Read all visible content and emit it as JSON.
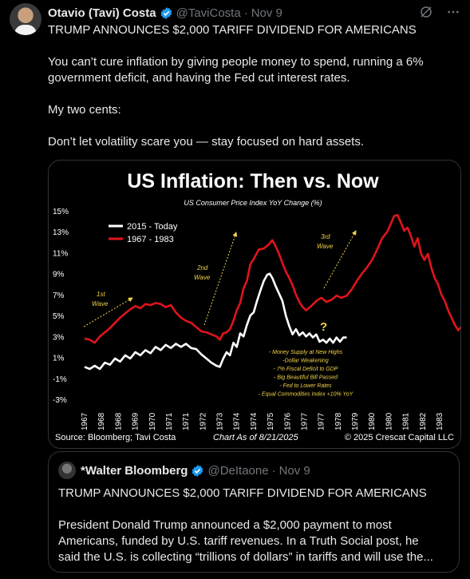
{
  "post": {
    "author_name": "Otavio (Tavi) Costa",
    "handle": "@TaviCosta",
    "separator": "·",
    "date": "Nov 9",
    "text": [
      "TRUMP ANNOUNCES $2,000 TARIFF DIVIDEND FOR AMERICANS",
      "You can’t cure inflation by giving people money to spend, running a 6% government deficit, and having the Fed cut interest rates.",
      "My two cents:",
      "Don’t let volatility scare you — stay focused on hard assets."
    ]
  },
  "icons": {
    "avatar": "avatar-photo",
    "verified": "verified-badge-icon",
    "grok": "grok-icon",
    "more": "more-options-icon"
  },
  "colors": {
    "accent": "#1d9bf0",
    "red": "#e0141b",
    "white": "#ffffff",
    "annotation": "#f1d34a"
  },
  "chart_data": {
    "type": "line",
    "title": "US Inflation: Then vs. Now",
    "subtitle": "US Consumer Price Index YoY Change (%)",
    "y_ticks": [
      "15%",
      "13%",
      "11%",
      "9%",
      "7%",
      "5%",
      "3%",
      "1%",
      "-1%",
      "-3%"
    ],
    "ylim": [
      -3,
      15
    ],
    "x_ticks": [
      "1967",
      "1968",
      "1968",
      "1969",
      "1970",
      "1971",
      "1971",
      "1972",
      "1973",
      "1974",
      "1974",
      "1975",
      "1976",
      "1977",
      "1977",
      "1978",
      "1979",
      "1980",
      "1980",
      "1981",
      "1982",
      "1983"
    ],
    "series": [
      {
        "name": "2015 - Today",
        "color": "#ffffff",
        "points": [
          [
            0,
            0.1
          ],
          [
            0.3,
            -0.1
          ],
          [
            0.6,
            0.2
          ],
          [
            0.9,
            -0.1
          ],
          [
            1.2,
            0.5
          ],
          [
            1.5,
            0.3
          ],
          [
            1.8,
            0.9
          ],
          [
            2.1,
            0.6
          ],
          [
            2.4,
            1.2
          ],
          [
            2.7,
            0.9
          ],
          [
            3.0,
            1.5
          ],
          [
            3.3,
            1.2
          ],
          [
            3.6,
            1.7
          ],
          [
            3.9,
            1.4
          ],
          [
            4.2,
            2.0
          ],
          [
            4.5,
            1.7
          ],
          [
            4.8,
            2.2
          ],
          [
            5.1,
            1.9
          ],
          [
            5.4,
            2.3
          ],
          [
            5.7,
            2.0
          ],
          [
            6.0,
            2.3
          ],
          [
            6.3,
            1.9
          ],
          [
            6.6,
            1.8
          ],
          [
            6.9,
            1.3
          ],
          [
            7.2,
            0.9
          ],
          [
            7.5,
            0.5
          ],
          [
            7.8,
            0.2
          ],
          [
            8.0,
            0.1
          ],
          [
            8.2,
            0.9
          ],
          [
            8.4,
            1.5
          ],
          [
            8.6,
            1.2
          ],
          [
            8.8,
            2.4
          ],
          [
            9.0,
            2.0
          ],
          [
            9.2,
            3.3
          ],
          [
            9.4,
            3.0
          ],
          [
            9.6,
            4.1
          ],
          [
            9.8,
            5.0
          ],
          [
            10.0,
            5.3
          ],
          [
            10.2,
            6.4
          ],
          [
            10.4,
            7.4
          ],
          [
            10.6,
            8.3
          ],
          [
            10.8,
            8.9
          ],
          [
            10.95,
            9.0
          ],
          [
            11.1,
            8.6
          ],
          [
            11.3,
            7.8
          ],
          [
            11.5,
            7.1
          ],
          [
            11.7,
            6.4
          ],
          [
            11.9,
            5.0
          ],
          [
            12.1,
            4.0
          ],
          [
            12.3,
            3.2
          ],
          [
            12.5,
            3.7
          ],
          [
            12.7,
            3.1
          ],
          [
            12.9,
            3.4
          ],
          [
            13.1,
            3.0
          ],
          [
            13.3,
            3.3
          ],
          [
            13.5,
            2.9
          ],
          [
            13.7,
            3.2
          ],
          [
            13.9,
            2.5
          ],
          [
            14.1,
            2.7
          ],
          [
            14.3,
            2.4
          ],
          [
            14.5,
            2.8
          ],
          [
            14.7,
            2.4
          ],
          [
            14.9,
            2.9
          ],
          [
            15.1,
            2.5
          ],
          [
            15.3,
            2.9
          ],
          [
            15.5,
            2.9
          ]
        ]
      },
      {
        "name": "1967 - 1983",
        "color": "#e0141b",
        "points": [
          [
            0,
            2.8
          ],
          [
            0.3,
            2.7
          ],
          [
            0.6,
            2.4
          ],
          [
            0.9,
            3.0
          ],
          [
            1.2,
            3.4
          ],
          [
            1.5,
            3.8
          ],
          [
            1.8,
            4.3
          ],
          [
            2.1,
            4.8
          ],
          [
            2.4,
            5.2
          ],
          [
            2.7,
            5.6
          ],
          [
            3.0,
            5.9
          ],
          [
            3.3,
            5.7
          ],
          [
            3.6,
            6.1
          ],
          [
            3.9,
            6.0
          ],
          [
            4.2,
            6.2
          ],
          [
            4.5,
            6.1
          ],
          [
            4.8,
            5.8
          ],
          [
            5.1,
            6.0
          ],
          [
            5.4,
            5.3
          ],
          [
            5.7,
            4.8
          ],
          [
            6.0,
            4.5
          ],
          [
            6.3,
            4.3
          ],
          [
            6.6,
            3.9
          ],
          [
            6.9,
            3.5
          ],
          [
            7.2,
            3.4
          ],
          [
            7.5,
            3.2
          ],
          [
            7.8,
            3.0
          ],
          [
            8.0,
            2.7
          ],
          [
            8.2,
            3.3
          ],
          [
            8.4,
            3.4
          ],
          [
            8.6,
            3.7
          ],
          [
            8.8,
            4.5
          ],
          [
            9.0,
            5.5
          ],
          [
            9.2,
            6.2
          ],
          [
            9.4,
            7.6
          ],
          [
            9.6,
            8.3
          ],
          [
            9.8,
            9.9
          ],
          [
            10.0,
            10.4
          ],
          [
            10.3,
            11.3
          ],
          [
            10.6,
            11.4
          ],
          [
            10.9,
            11.8
          ],
          [
            11.1,
            12.2
          ],
          [
            11.3,
            11.6
          ],
          [
            11.5,
            10.9
          ],
          [
            11.7,
            10.0
          ],
          [
            11.9,
            9.2
          ],
          [
            12.1,
            8.6
          ],
          [
            12.3,
            7.9
          ],
          [
            12.5,
            7.0
          ],
          [
            12.7,
            6.3
          ],
          [
            12.9,
            5.8
          ],
          [
            13.1,
            5.5
          ],
          [
            13.4,
            5.9
          ],
          [
            13.7,
            6.4
          ],
          [
            14.0,
            6.7
          ],
          [
            14.3,
            6.3
          ],
          [
            14.6,
            6.5
          ],
          [
            14.9,
            6.9
          ],
          [
            15.2,
            6.7
          ],
          [
            15.5,
            6.9
          ],
          [
            15.8,
            7.5
          ],
          [
            16.1,
            8.3
          ],
          [
            16.4,
            9.0
          ],
          [
            16.7,
            9.6
          ],
          [
            17.0,
            10.3
          ],
          [
            17.3,
            11.3
          ],
          [
            17.6,
            12.4
          ],
          [
            17.9,
            13.0
          ],
          [
            18.1,
            13.7
          ],
          [
            18.3,
            14.5
          ],
          [
            18.5,
            14.6
          ],
          [
            18.7,
            13.9
          ],
          [
            18.9,
            13.1
          ],
          [
            19.1,
            13.4
          ],
          [
            19.3,
            12.6
          ],
          [
            19.5,
            11.6
          ],
          [
            19.7,
            12.4
          ],
          [
            19.9,
            10.9
          ],
          [
            20.1,
            10.3
          ],
          [
            20.3,
            10.9
          ],
          [
            20.5,
            9.6
          ],
          [
            20.7,
            8.6
          ],
          [
            20.9,
            8.0
          ],
          [
            21.1,
            7.0
          ],
          [
            21.3,
            6.4
          ],
          [
            21.5,
            5.5
          ],
          [
            21.7,
            4.8
          ],
          [
            21.9,
            4.1
          ],
          [
            22.1,
            3.6
          ],
          [
            22.3,
            4.0
          ],
          [
            22.5,
            3.7
          ],
          [
            22.7,
            3.4
          ],
          [
            22.8,
            2.6
          ]
        ]
      }
    ],
    "annotations": {
      "wave1": [
        "1st",
        "Wave"
      ],
      "wave2": [
        "2nd",
        "Wave"
      ],
      "wave3": [
        "3rd",
        "Wave"
      ],
      "question": "?",
      "bullets": [
        "- Money Supply at New Highs",
        "-Dollar Weakening",
        "- 7% Fiscal Deficit to GDP",
        "- Big Beautiful Bill Passed",
        "- Fed to Lower Rates",
        "- Equal Commodities Index +10% YoY"
      ]
    },
    "legend_placement": "top-left",
    "grid": false,
    "source": "Source: Bloomberg; Tavi Costa",
    "as_of": "Chart As of 8/21/2025",
    "copyright": "© 2025 Crescat Capital LLC"
  },
  "quote": {
    "author_name": "*Walter Bloomberg",
    "handle": "@DeItaone",
    "separator": "·",
    "date": "Nov 9",
    "text": [
      "TRUMP ANNOUNCES $2,000 TARIFF DIVIDEND FOR AMERICANS",
      "President Donald Trump announced a $2,000 payment to most Americans, funded by U.S. tariff revenues. In a Truth Social post, he",
      "said the U.S. is collecting “trillions of dollars” in tariffs and will use the..."
    ]
  }
}
